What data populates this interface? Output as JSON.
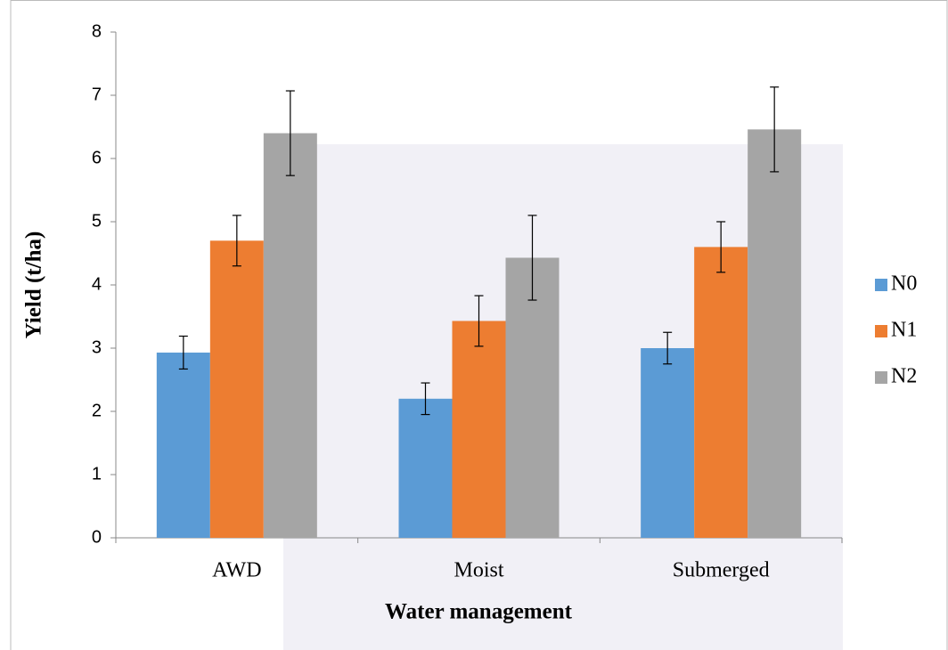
{
  "chart_data": {
    "type": "bar",
    "x_label": "Water management",
    "y_label": "Yield (t/ha)",
    "categories": [
      "AWD",
      "Moist",
      "Submerged"
    ],
    "series": [
      {
        "name": "N0",
        "color": "#5b9bd5",
        "values": [
          2.93,
          2.2,
          3.0
        ],
        "errors": [
          0.26,
          0.25,
          0.25
        ]
      },
      {
        "name": "N1",
        "color": "#ed7d31",
        "values": [
          4.7,
          3.43,
          4.6
        ],
        "errors": [
          0.4,
          0.4,
          0.4
        ]
      },
      {
        "name": "N2",
        "color": "#a5a5a5",
        "values": [
          6.4,
          4.43,
          6.46
        ],
        "errors": [
          0.67,
          0.67,
          0.67
        ]
      }
    ],
    "ylim": [
      0,
      8
    ],
    "yticks": [
      0,
      1,
      2,
      3,
      4,
      5,
      6,
      7,
      8
    ],
    "legend": "right"
  }
}
